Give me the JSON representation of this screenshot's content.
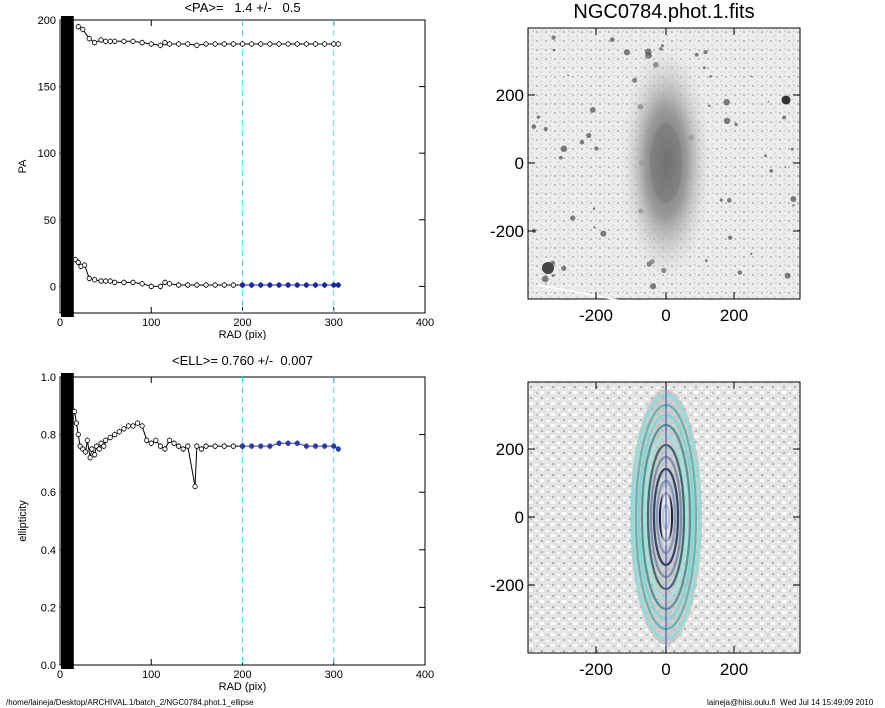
{
  "footer": {
    "path": "/home/laineja/Desktop/ARCHIVAL.1/batch_2/NGC0784.phot.1_ellipse",
    "stamp": "laineja@hiisi.oulu.fi  Wed Jul 14 15:49:09 2010"
  },
  "image_title": "NGC0784.phot.1.fits",
  "image_panels": [
    {
      "xticks": [
        "-200",
        "0",
        "200"
      ],
      "yticks": [
        "200",
        "0",
        "-200"
      ]
    },
    {
      "xticks": [
        "-200",
        "0",
        "200"
      ],
      "yticks": [
        "200",
        "0",
        "-200"
      ]
    }
  ],
  "chart_data": [
    {
      "type": "scatter",
      "title": "<PA>=   1.4 +/-   0.5",
      "xlabel": "RAD (pix)",
      "ylabel": "PA",
      "xlim": [
        0,
        400
      ],
      "ylim": [
        -20,
        200
      ],
      "xticks": [
        0,
        100,
        200,
        300,
        400
      ],
      "yticks": [
        0,
        50,
        100,
        150,
        200
      ],
      "fit_range": [
        200,
        300
      ],
      "series": [
        {
          "x": [
            20,
            25,
            32,
            38,
            45,
            50,
            55,
            60,
            70,
            80,
            90,
            100,
            110,
            115,
            120,
            130,
            140,
            150,
            160,
            170,
            180,
            190,
            200,
            210,
            220,
            230,
            240,
            250,
            260,
            270,
            280,
            290,
            300,
            305
          ],
          "values": [
            195,
            193,
            186,
            183,
            185,
            184,
            184,
            184,
            184,
            184,
            183,
            182,
            181,
            183,
            182,
            182,
            182,
            181,
            182,
            182,
            182,
            182,
            182,
            182,
            182,
            182,
            182,
            182,
            182,
            182,
            182,
            182,
            182,
            182
          ]
        },
        {
          "x": [
            17,
            20,
            23,
            27,
            32,
            38,
            45,
            50,
            55,
            60,
            70,
            80,
            90,
            100,
            110,
            115,
            120,
            130,
            140,
            150,
            160,
            170,
            180,
            190,
            200
          ],
          "values": [
            20,
            18,
            15,
            16,
            6,
            5,
            4,
            4,
            4,
            3,
            3,
            3,
            2,
            0,
            0,
            3,
            2,
            1,
            1,
            1,
            1,
            1,
            1,
            1,
            1
          ]
        },
        {
          "x": [
            200,
            210,
            220,
            230,
            240,
            250,
            260,
            270,
            280,
            290,
            300,
            305
          ],
          "values": [
            1,
            1,
            1,
            1,
            1,
            1,
            1,
            1,
            1,
            1,
            1,
            1
          ]
        }
      ]
    },
    {
      "type": "scatter",
      "title": "<ELL>= 0.760 +/-  0.007",
      "xlabel": "RAD (pix)",
      "ylabel": "ellipticity",
      "xlim": [
        0,
        400
      ],
      "ylim": [
        0,
        1
      ],
      "xticks": [
        0,
        100,
        200,
        300,
        400
      ],
      "yticks": [
        0.0,
        0.2,
        0.4,
        0.6,
        0.8,
        1.0
      ],
      "fit_range": [
        200,
        300
      ],
      "series": [
        {
          "x": [
            16,
            18,
            20,
            22,
            25,
            28,
            30,
            33,
            35,
            38,
            40,
            43,
            45,
            48,
            50,
            55,
            60,
            65,
            70,
            75,
            80,
            85,
            90,
            95,
            100,
            105,
            110,
            115,
            120,
            125,
            130,
            135,
            140,
            148,
            150,
            155,
            160,
            170,
            180,
            190,
            200
          ],
          "values": [
            0.88,
            0.84,
            0.8,
            0.76,
            0.75,
            0.74,
            0.78,
            0.72,
            0.75,
            0.73,
            0.76,
            0.75,
            0.77,
            0.76,
            0.78,
            0.79,
            0.8,
            0.81,
            0.82,
            0.83,
            0.83,
            0.84,
            0.83,
            0.78,
            0.77,
            0.78,
            0.76,
            0.75,
            0.78,
            0.77,
            0.76,
            0.75,
            0.76,
            0.62,
            0.76,
            0.75,
            0.76,
            0.76,
            0.76,
            0.76,
            0.76
          ]
        },
        {
          "x": [
            200,
            210,
            220,
            230,
            240,
            250,
            260,
            270,
            280,
            290,
            300,
            305
          ],
          "values": [
            0.76,
            0.76,
            0.76,
            0.76,
            0.77,
            0.77,
            0.77,
            0.76,
            0.76,
            0.76,
            0.76,
            0.75
          ]
        }
      ]
    }
  ]
}
